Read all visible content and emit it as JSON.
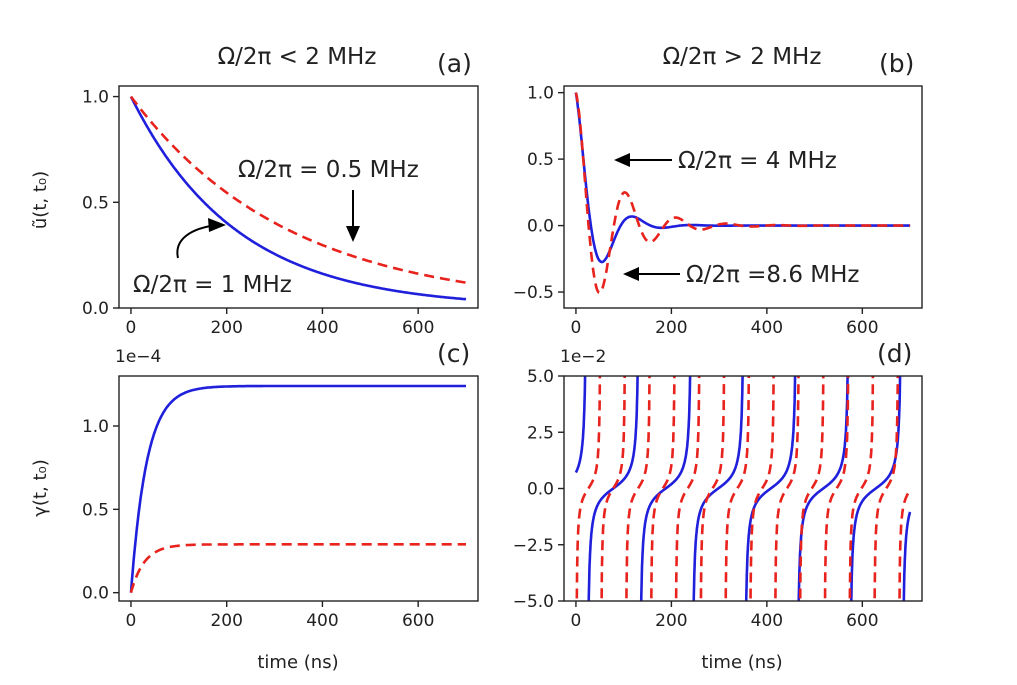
{
  "figure": {
    "top_left_title": "Ω/2π < 2 MHz",
    "top_right_title": "Ω/2π > 2 MHz",
    "xlabel": "time (ns)",
    "ylabel_top": "ũ(t, t₀)",
    "ylabel_bottom": "γ(t, t₀)"
  },
  "colors": {
    "blue": "#1f1fdc",
    "red": "#e8221c",
    "axis": "#222222"
  },
  "chart_data": [
    {
      "id": "a",
      "letter": "(a)",
      "type": "line",
      "title": "Ω/2π < 2 MHz",
      "xlim": [
        -25,
        725
      ],
      "ylim": [
        0,
        1.05
      ],
      "xticks": [
        0,
        200,
        400,
        600
      ],
      "yticks": [
        0.0,
        0.5,
        1.0
      ],
      "ytick_labels": [
        "0.0",
        "0.5",
        "1.0"
      ],
      "ylabel": "ũ(t, t₀)",
      "series": [
        {
          "name": "Ω/2π = 1 MHz",
          "style": "solid",
          "color": "#1f1fdc",
          "model": "exp",
          "tau": 220
        },
        {
          "name": "Ω/2π = 0.5 MHz",
          "style": "dashed",
          "color": "#e8221c",
          "model": "exp",
          "tau": 330
        }
      ],
      "annotations": [
        "Ω/2π = 0.5 MHz",
        "Ω/2π = 1 MHz"
      ]
    },
    {
      "id": "b",
      "letter": "(b)",
      "type": "line",
      "title": "Ω/2π > 2 MHz",
      "xlim": [
        -25,
        725
      ],
      "ylim": [
        -0.62,
        1.05
      ],
      "xticks": [
        0,
        200,
        400,
        600
      ],
      "yticks": [
        -0.5,
        0.0,
        0.5,
        1.0
      ],
      "ytick_labels": [
        "−0.5",
        "0.0",
        "0.5",
        "1.0"
      ],
      "series": [
        {
          "name": "Ω/2π = 4 MHz",
          "style": "solid",
          "color": "#1f1fdc",
          "model": "damped",
          "tau": 45,
          "period": 125
        },
        {
          "name": "Ω/2π =8.6 MHz",
          "style": "dashed",
          "color": "#e8221c",
          "model": "damped",
          "tau": 75,
          "period": 106
        }
      ],
      "annotations": [
        "Ω/2π = 4 MHz",
        "Ω/2π =8.6 MHz"
      ]
    },
    {
      "id": "c",
      "letter": "(c)",
      "type": "line",
      "multiplier": "1e−4",
      "xlim": [
        -25,
        725
      ],
      "ylim": [
        -0.05,
        1.3
      ],
      "xticks": [
        0,
        200,
        400,
        600
      ],
      "yticks": [
        0.0,
        0.5,
        1.0
      ],
      "ytick_labels": [
        "0.0",
        "0.5",
        "1.0"
      ],
      "xlabel": "time (ns)",
      "ylabel": "γ(t, t₀)",
      "series": [
        {
          "name": "Ω/2π = 1 MHz",
          "style": "solid",
          "color": "#1f1fdc",
          "model": "rise",
          "asymptote": 1.24,
          "tau": 33
        },
        {
          "name": "Ω/2π = 0.5 MHz",
          "style": "dashed",
          "color": "#e8221c",
          "model": "rise",
          "asymptote": 0.29,
          "tau": 28
        }
      ]
    },
    {
      "id": "d",
      "letter": "(d)",
      "type": "line",
      "multiplier": "1e−2",
      "xlim": [
        -25,
        725
      ],
      "ylim": [
        -5.0,
        5.0
      ],
      "xticks": [
        0,
        200,
        400,
        600
      ],
      "yticks": [
        -5.0,
        -2.5,
        0.0,
        2.5,
        5.0
      ],
      "ytick_labels": [
        "−5.0",
        "−2.5",
        "0.0",
        "2.5",
        "5.0"
      ],
      "xlabel": "time (ns)",
      "series": [
        {
          "name": "Ω/2π = 4 MHz",
          "style": "solid",
          "color": "#1f1fdc",
          "model": "tan",
          "period": 110,
          "phase": 78
        },
        {
          "name": "Ω/2π =8.6 MHz",
          "style": "dashed",
          "color": "#e8221c",
          "model": "tan",
          "period": 52,
          "phase": 26
        }
      ]
    }
  ]
}
